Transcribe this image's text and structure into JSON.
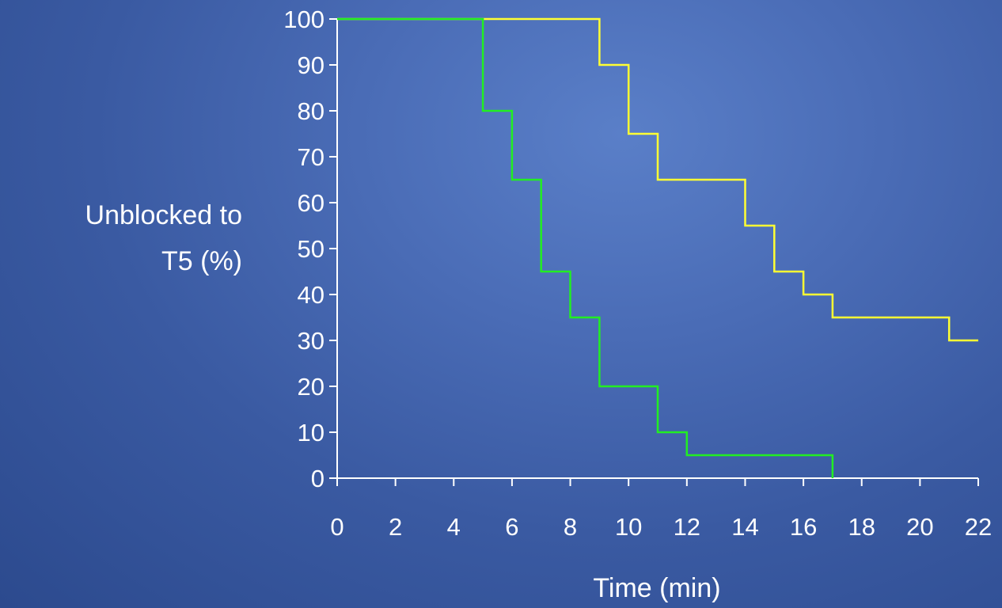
{
  "chart_data": {
    "type": "line",
    "step": true,
    "title": "",
    "xlabel": "Time (min)",
    "ylabel_lines": [
      "Unblocked to",
      "T5 (%)"
    ],
    "xlim": [
      0,
      22
    ],
    "ylim": [
      0,
      100
    ],
    "x_ticks": [
      0,
      2,
      4,
      6,
      8,
      10,
      12,
      14,
      16,
      18,
      20,
      22
    ],
    "y_ticks": [
      0,
      10,
      20,
      30,
      40,
      50,
      60,
      70,
      80,
      90,
      100
    ],
    "grid": false,
    "legend": "none",
    "series": [
      {
        "color": "#ffff33",
        "points": [
          [
            0,
            100
          ],
          [
            9,
            100
          ],
          [
            9,
            90
          ],
          [
            10,
            90
          ],
          [
            10,
            75
          ],
          [
            11,
            75
          ],
          [
            11,
            65
          ],
          [
            14,
            65
          ],
          [
            14,
            55
          ],
          [
            15,
            55
          ],
          [
            15,
            45
          ],
          [
            16,
            45
          ],
          [
            16,
            40
          ],
          [
            17,
            40
          ],
          [
            17,
            35
          ],
          [
            21,
            35
          ],
          [
            21,
            30
          ],
          [
            22,
            30
          ]
        ]
      },
      {
        "color": "#22ee22",
        "points": [
          [
            0,
            100
          ],
          [
            5,
            100
          ],
          [
            5,
            80
          ],
          [
            6,
            80
          ],
          [
            6,
            65
          ],
          [
            7,
            65
          ],
          [
            7,
            45
          ],
          [
            8,
            45
          ],
          [
            8,
            35
          ],
          [
            9,
            35
          ],
          [
            9,
            20
          ],
          [
            11,
            20
          ],
          [
            11,
            10
          ],
          [
            12,
            10
          ],
          [
            12,
            5
          ],
          [
            17,
            5
          ],
          [
            17,
            0
          ]
        ]
      }
    ]
  }
}
